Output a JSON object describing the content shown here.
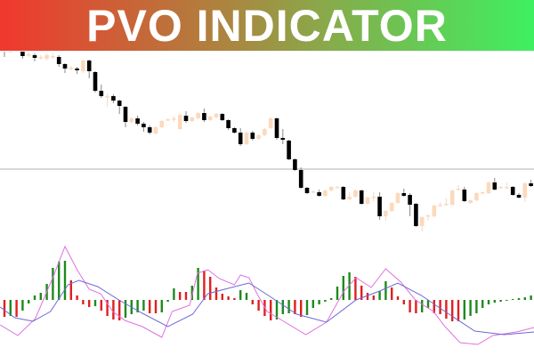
{
  "title": "PVO INDICATOR",
  "colors": {
    "banner_start": "#f0382e",
    "banner_end": "#3ef060",
    "bear_candle": "#000000",
    "bull_candle": "#fcd9bc",
    "hist_up": "#1e8a1e",
    "hist_down": "#e02020",
    "pvo_line": "#e070e0",
    "signal_line": "#6a6ad8",
    "level_line": "#b0b0b0"
  },
  "chart_data": [
    {
      "type": "candlestick",
      "panel": "price",
      "grid": false,
      "horizontal_level": 110,
      "candles_ohlc": [
        [
          253,
          258,
          236,
          242
        ],
        [
          242,
          245,
          240,
          243
        ],
        [
          247,
          249,
          243,
          245
        ],
        [
          245,
          247,
          234,
          237
        ],
        [
          238,
          241,
          236,
          239
        ],
        [
          238,
          240,
          231,
          235
        ],
        [
          235,
          238,
          233,
          236
        ],
        [
          234,
          240,
          232,
          238
        ],
        [
          237,
          240,
          234,
          237
        ],
        [
          236,
          238,
          225,
          228
        ],
        [
          228,
          229,
          218,
          223
        ],
        [
          223,
          226,
          221,
          224
        ],
        [
          223,
          225,
          217,
          221
        ],
        [
          220,
          233,
          218,
          232
        ],
        [
          232,
          233,
          212,
          220
        ],
        [
          219,
          220,
          196,
          198
        ],
        [
          198,
          205,
          190,
          192
        ],
        [
          192,
          195,
          180,
          192
        ],
        [
          192,
          194,
          184,
          187
        ],
        [
          187,
          188,
          172,
          181
        ],
        [
          180,
          181,
          157,
          163
        ],
        [
          163,
          168,
          161,
          167
        ],
        [
          167,
          170,
          159,
          161
        ],
        [
          161,
          163,
          152,
          157
        ],
        [
          157,
          159,
          149,
          151
        ],
        [
          150,
          158,
          149,
          157
        ],
        [
          157,
          165,
          156,
          164
        ],
        [
          165,
          167,
          164,
          166
        ],
        [
          167,
          170,
          163,
          167
        ],
        [
          155,
          172,
          154,
          171
        ],
        [
          170,
          175,
          162,
          164
        ],
        [
          164,
          169,
          163,
          168
        ],
        [
          167,
          174,
          166,
          173
        ],
        [
          173,
          178,
          163,
          165
        ],
        [
          165,
          170,
          164,
          169
        ],
        [
          168,
          173,
          167,
          172
        ],
        [
          172,
          173,
          164,
          165
        ],
        [
          165,
          166,
          154,
          156
        ],
        [
          156,
          157,
          150,
          151
        ],
        [
          151,
          156,
          136,
          138
        ],
        [
          138,
          152,
          137,
          151
        ],
        [
          151,
          153,
          142,
          144
        ],
        [
          144,
          149,
          143,
          148
        ],
        [
          148,
          156,
          147,
          155
        ],
        [
          156,
          168,
          155,
          167
        ],
        [
          167,
          168,
          143,
          145
        ],
        [
          145,
          155,
          138,
          143
        ],
        [
          142,
          143,
          120,
          121
        ],
        [
          121,
          122,
          108,
          109
        ],
        [
          109,
          112,
          88,
          89
        ],
        [
          89,
          90,
          82,
          83
        ],
        [
          84,
          86,
          83,
          85
        ],
        [
          84,
          87,
          79,
          80
        ],
        [
          80,
          87,
          79,
          86
        ],
        [
          86,
          91,
          85,
          90
        ],
        [
          90,
          91,
          89,
          90
        ],
        [
          90,
          91,
          75,
          76
        ],
        [
          76,
          84,
          75,
          79
        ],
        [
          79,
          87,
          78,
          86
        ],
        [
          86,
          87,
          70,
          71
        ],
        [
          71,
          79,
          70,
          78
        ],
        [
          79,
          84,
          74,
          79
        ],
        [
          79,
          84,
          53,
          57
        ],
        [
          57,
          64,
          52,
          63
        ],
        [
          63,
          73,
          62,
          72
        ],
        [
          72,
          84,
          71,
          83
        ],
        [
          83,
          88,
          79,
          80
        ],
        [
          81,
          83,
          57,
          70
        ],
        [
          71,
          72,
          45,
          46
        ],
        [
          46,
          57,
          40,
          56
        ],
        [
          57,
          59,
          52,
          58
        ],
        [
          57,
          70,
          56,
          69
        ],
        [
          70,
          73,
          68,
          70
        ],
        [
          70,
          77,
          69,
          71
        ],
        [
          70,
          87,
          69,
          86
        ],
        [
          87,
          92,
          86,
          88
        ],
        [
          87,
          90,
          73,
          74
        ],
        [
          72,
          76,
          71,
          75
        ],
        [
          75,
          84,
          74,
          83
        ],
        [
          83,
          85,
          82,
          84
        ],
        [
          83,
          96,
          82,
          95
        ],
        [
          95,
          100,
          86,
          87
        ],
        [
          89,
          91,
          88,
          90
        ],
        [
          90,
          95,
          88,
          90
        ],
        [
          90,
          91,
          80,
          81
        ],
        [
          81,
          83,
          77,
          78
        ],
        [
          78,
          95,
          73,
          94
        ],
        [
          94,
          98,
          90,
          91
        ]
      ]
    },
    {
      "type": "bar+line",
      "panel": "pvo",
      "grid": false,
      "histogram_values": [
        -19,
        -18,
        -19,
        -12,
        -4,
        5,
        8,
        18,
        36,
        43,
        44,
        22,
        5,
        -5,
        -8,
        -7,
        -12,
        -18,
        -22,
        -23,
        -20,
        -16,
        -14,
        -12,
        -15,
        -15,
        -14,
        -2,
        13,
        9,
        9,
        16,
        36,
        33,
        26,
        14,
        7,
        4,
        2,
        11,
        8,
        -5,
        -12,
        -18,
        -23,
        -22,
        -16,
        -15,
        -16,
        -19,
        -17,
        -9,
        -5,
        -2,
        2,
        15,
        27,
        31,
        26,
        16,
        8,
        5,
        10,
        21,
        14,
        4,
        -5,
        -14,
        -15,
        -14,
        -9,
        -15,
        -16,
        -21,
        -24,
        -24,
        -22,
        -18,
        -15,
        -9,
        -5,
        -3,
        -2,
        -1,
        1,
        2,
        3,
        5
      ],
      "histogram_colors": [
        "r",
        "g",
        "r",
        "g",
        "g",
        "g",
        "g",
        "g",
        "g",
        "g",
        "g",
        "r",
        "r",
        "r",
        "r",
        "g",
        "r",
        "r",
        "r",
        "r",
        "g",
        "g",
        "g",
        "g",
        "r",
        "r",
        "g",
        "g",
        "g",
        "r",
        "r",
        "g",
        "g",
        "r",
        "r",
        "r",
        "r",
        "r",
        "r",
        "g",
        "g",
        "r",
        "r",
        "r",
        "r",
        "g",
        "g",
        "g",
        "r",
        "r",
        "g",
        "g",
        "g",
        "g",
        "g",
        "g",
        "g",
        "g",
        "r",
        "r",
        "r",
        "r",
        "g",
        "g",
        "r",
        "r",
        "r",
        "r",
        "r",
        "g",
        "g",
        "r",
        "r",
        "r",
        "r",
        "r",
        "g",
        "g",
        "g",
        "g",
        "g",
        "g",
        "g",
        "g",
        "g",
        "g",
        "g",
        "g"
      ],
      "series": [
        {
          "line": "pvo",
          "points": [
            [
              -0.7,
              -28
            ],
            [
              2.2,
              -40
            ],
            [
              5.1,
              -21
            ],
            [
              8.1,
              27
            ],
            [
              10,
              60
            ],
            [
              12,
              34
            ],
            [
              14,
              12
            ],
            [
              15.9,
              7
            ],
            [
              17.9,
              -13
            ],
            [
              19.9,
              -23
            ],
            [
              22.8,
              -30
            ],
            [
              26,
              -42
            ],
            [
              27.7,
              -13
            ],
            [
              30.6,
              -6
            ],
            [
              31.9,
              30
            ],
            [
              33.6,
              34
            ],
            [
              35.5,
              24
            ],
            [
              38,
              17
            ],
            [
              39,
              28
            ],
            [
              40.4,
              25
            ],
            [
              41.9,
              5
            ],
            [
              43.4,
              -13
            ],
            [
              45.4,
              -21
            ],
            [
              49.8,
              -39
            ],
            [
              53.2,
              -25
            ],
            [
              56.1,
              10
            ],
            [
              58.1,
              25
            ],
            [
              60.6,
              14
            ],
            [
              63,
              35
            ],
            [
              65.5,
              20
            ],
            [
              67.9,
              0
            ],
            [
              70.9,
              -13
            ],
            [
              72.8,
              -30
            ],
            [
              75.3,
              -48
            ],
            [
              78.2,
              -50
            ],
            [
              80.7,
              -40
            ],
            [
              84.6,
              -36
            ],
            [
              87.5,
              -31
            ]
          ]
        },
        {
          "line": "signal",
          "points": [
            [
              -0.7,
              -8
            ],
            [
              1.7,
              -20
            ],
            [
              4.7,
              -24
            ],
            [
              7.6,
              -13
            ],
            [
              10.5,
              17
            ],
            [
              12.3,
              22
            ],
            [
              15.4,
              15
            ],
            [
              18.9,
              0
            ],
            [
              22.8,
              -15
            ],
            [
              27,
              -30
            ],
            [
              31.1,
              -16
            ],
            [
              33.6,
              7
            ],
            [
              37.5,
              14
            ],
            [
              40.4,
              19
            ],
            [
              43.4,
              6
            ],
            [
              48.3,
              -16
            ],
            [
              53.2,
              -25
            ],
            [
              58.1,
              0
            ],
            [
              62,
              10
            ],
            [
              65,
              19
            ],
            [
              68.9,
              5
            ],
            [
              72.8,
              -13
            ],
            [
              77.7,
              -35
            ],
            [
              82.6,
              -39
            ],
            [
              87.5,
              -36
            ]
          ]
        }
      ]
    }
  ]
}
